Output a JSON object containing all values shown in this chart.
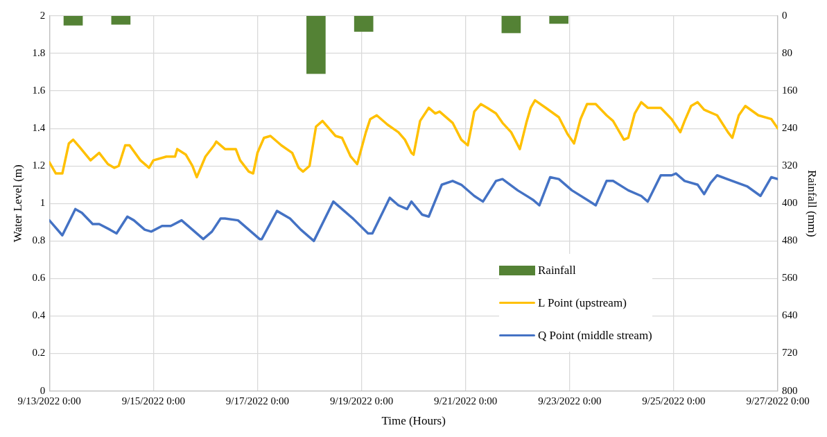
{
  "chart_data": {
    "type": "line",
    "xlabel": "Time (Hours)",
    "ylabel": "Water Level (m)",
    "y2label": "Rainfall (mm)",
    "xlim": [
      "2022-09-13T00:00",
      "2022-09-27T00:00"
    ],
    "xticks": [
      {
        "value": "2022-09-13T00:00",
        "label": "9/13/2022 0:00"
      },
      {
        "value": "2022-09-15T00:00",
        "label": "9/15/2022 0:00"
      },
      {
        "value": "2022-09-17T00:00",
        "label": "9/17/2022 0:00"
      },
      {
        "value": "2022-09-19T00:00",
        "label": "9/19/2022 0:00"
      },
      {
        "value": "2022-09-21T00:00",
        "label": "9/21/2022 0:00"
      },
      {
        "value": "2022-09-23T00:00",
        "label": "9/23/2022 0:00"
      },
      {
        "value": "2022-09-25T00:00",
        "label": "9/25/2022 0:00"
      },
      {
        "value": "2022-09-27T00:00",
        "label": "9/27/2022 0:00"
      }
    ],
    "ylim": [
      0,
      2
    ],
    "yticks": [
      0,
      0.2,
      0.4,
      0.6,
      0.8,
      1,
      1.2,
      1.4,
      1.6,
      1.8,
      2
    ],
    "y2lim": [
      800,
      0
    ],
    "y2ticks": [
      0,
      80,
      160,
      240,
      320,
      400,
      480,
      560,
      640,
      720,
      800
    ],
    "grid": true,
    "legend": "right",
    "marker": "none",
    "line_style": "solid",
    "series": [
      {
        "name": "Rainfall",
        "type": "bar",
        "axis": "y2",
        "color": "#548235",
        "x": [
          "2022-09-13T11:00",
          "2022-09-14T09:00",
          "2022-09-18T03:00",
          "2022-09-19T01:00",
          "2022-09-21T21:00",
          "2022-09-22T19:00"
        ],
        "values": [
          20,
          18,
          123,
          33,
          36,
          16
        ]
      },
      {
        "name": "L Point (upstream)",
        "color": "#ffc000",
        "x": [
          "2022-09-13T00:00",
          "2022-09-13T03:00",
          "2022-09-13T06:00",
          "2022-09-13T09:00",
          "2022-09-13T11:00",
          "2022-09-13T14:00",
          "2022-09-13T19:00",
          "2022-09-13T23:00",
          "2022-09-14T03:00",
          "2022-09-14T06:00",
          "2022-09-14T08:00",
          "2022-09-14T11:00",
          "2022-09-14T13:00",
          "2022-09-14T18:00",
          "2022-09-14T22:00",
          "2022-09-15T00:00",
          "2022-09-15T06:00",
          "2022-09-15T10:00",
          "2022-09-15T11:00",
          "2022-09-15T15:00",
          "2022-09-15T18:00",
          "2022-09-15T20:00",
          "2022-09-16T00:00",
          "2022-09-16T04:00",
          "2022-09-16T05:00",
          "2022-09-16T09:00",
          "2022-09-16T14:00",
          "2022-09-16T16:00",
          "2022-09-16T20:00",
          "2022-09-16T22:00",
          "2022-09-17T00:00",
          "2022-09-17T03:00",
          "2022-09-17T06:00",
          "2022-09-17T11:00",
          "2022-09-17T16:00",
          "2022-09-17T19:00",
          "2022-09-17T21:00",
          "2022-09-18T00:00",
          "2022-09-18T03:00",
          "2022-09-18T06:00",
          "2022-09-18T12:00",
          "2022-09-18T15:00",
          "2022-09-18T19:00",
          "2022-09-18T22:00",
          "2022-09-19T02:00",
          "2022-09-19T04:00",
          "2022-09-19T07:00",
          "2022-09-19T12:00",
          "2022-09-19T17:00",
          "2022-09-19T20:00",
          "2022-09-19T23:00",
          "2022-09-20T00:00",
          "2022-09-20T03:00",
          "2022-09-20T07:00",
          "2022-09-20T10:00",
          "2022-09-20T12:00",
          "2022-09-20T18:00",
          "2022-09-20T22:00",
          "2022-09-21T01:00",
          "2022-09-21T04:00",
          "2022-09-21T07:00",
          "2022-09-21T10:00",
          "2022-09-21T14:00",
          "2022-09-21T17:00",
          "2022-09-21T21:00",
          "2022-09-22T01:00",
          "2022-09-22T04:00",
          "2022-09-22T06:00",
          "2022-09-22T08:00",
          "2022-09-22T13:00",
          "2022-09-22T19:00",
          "2022-09-22T23:00",
          "2022-09-23T02:00",
          "2022-09-23T05:00",
          "2022-09-23T08:00",
          "2022-09-23T12:00",
          "2022-09-23T17:00",
          "2022-09-23T20:00",
          "2022-09-24T01:00",
          "2022-09-24T03:00",
          "2022-09-24T06:00",
          "2022-09-24T09:00",
          "2022-09-24T12:00",
          "2022-09-24T18:00",
          "2022-09-24T23:00",
          "2022-09-25T03:00",
          "2022-09-25T05:00",
          "2022-09-25T08:00",
          "2022-09-25T11:00",
          "2022-09-25T14:00",
          "2022-09-25T20:00",
          "2022-09-26T01:00",
          "2022-09-26T03:00",
          "2022-09-26T06:00",
          "2022-09-26T09:00",
          "2022-09-26T15:00",
          "2022-09-26T21:00",
          "2022-09-27T00:00"
        ],
        "values": [
          1.22,
          1.16,
          1.16,
          1.32,
          1.34,
          1.3,
          1.23,
          1.27,
          1.21,
          1.19,
          1.2,
          1.31,
          1.31,
          1.23,
          1.19,
          1.23,
          1.25,
          1.25,
          1.29,
          1.26,
          1.2,
          1.14,
          1.25,
          1.31,
          1.33,
          1.29,
          1.29,
          1.23,
          1.17,
          1.16,
          1.27,
          1.35,
          1.36,
          1.31,
          1.27,
          1.19,
          1.17,
          1.2,
          1.41,
          1.44,
          1.36,
          1.35,
          1.25,
          1.21,
          1.38,
          1.45,
          1.47,
          1.42,
          1.38,
          1.34,
          1.27,
          1.26,
          1.44,
          1.51,
          1.48,
          1.49,
          1.43,
          1.34,
          1.31,
          1.49,
          1.53,
          1.51,
          1.48,
          1.43,
          1.38,
          1.29,
          1.43,
          1.51,
          1.55,
          1.51,
          1.46,
          1.37,
          1.32,
          1.45,
          1.53,
          1.53,
          1.47,
          1.44,
          1.34,
          1.35,
          1.48,
          1.54,
          1.51,
          1.51,
          1.45,
          1.38,
          1.44,
          1.52,
          1.54,
          1.5,
          1.47,
          1.38,
          1.35,
          1.47,
          1.52,
          1.47,
          1.45,
          1.4
        ]
      },
      {
        "name": "Q Point (middle stream)",
        "color": "#4472c4",
        "x": [
          "2022-09-13T00:00",
          "2022-09-13T06:00",
          "2022-09-13T12:00",
          "2022-09-13T15:00",
          "2022-09-13T20:00",
          "2022-09-13T23:00",
          "2022-09-14T04:00",
          "2022-09-14T07:00",
          "2022-09-14T12:00",
          "2022-09-14T15:00",
          "2022-09-14T20:00",
          "2022-09-14T23:00",
          "2022-09-15T04:00",
          "2022-09-15T08:00",
          "2022-09-15T13:00",
          "2022-09-15T18:00",
          "2022-09-15T23:00",
          "2022-09-16T03:00",
          "2022-09-16T07:00",
          "2022-09-16T09:00",
          "2022-09-16T15:00",
          "2022-09-16T20:00",
          "2022-09-17T01:00",
          "2022-09-17T02:00",
          "2022-09-17T09:00",
          "2022-09-17T15:00",
          "2022-09-17T20:00",
          "2022-09-18T02:00",
          "2022-09-18T11:00",
          "2022-09-18T16:00",
          "2022-09-18T20:00",
          "2022-09-19T03:00",
          "2022-09-19T05:00",
          "2022-09-19T13:00",
          "2022-09-19T17:00",
          "2022-09-19T21:00",
          "2022-09-19T23:00",
          "2022-09-20T04:00",
          "2022-09-20T07:00",
          "2022-09-20T13:00",
          "2022-09-20T18:00",
          "2022-09-20T22:00",
          "2022-09-21T04:00",
          "2022-09-21T08:00",
          "2022-09-21T14:00",
          "2022-09-21T17:00",
          "2022-09-22T00:00",
          "2022-09-22T07:00",
          "2022-09-22T10:00",
          "2022-09-22T15:00",
          "2022-09-22T19:00",
          "2022-09-23T01:00",
          "2022-09-23T08:00",
          "2022-09-23T12:00",
          "2022-09-23T17:00",
          "2022-09-23T20:00",
          "2022-09-24T03:00",
          "2022-09-24T09:00",
          "2022-09-24T12:00",
          "2022-09-24T18:00",
          "2022-09-24T23:00",
          "2022-09-25T01:00",
          "2022-09-25T05:00",
          "2022-09-25T11:00",
          "2022-09-25T14:00",
          "2022-09-25T17:00",
          "2022-09-25T20:00",
          "2022-09-26T03:00",
          "2022-09-26T10:00",
          "2022-09-26T16:00",
          "2022-09-26T21:00",
          "2022-09-27T00:00"
        ],
        "values": [
          0.91,
          0.83,
          0.97,
          0.95,
          0.89,
          0.89,
          0.86,
          0.84,
          0.93,
          0.91,
          0.86,
          0.85,
          0.88,
          0.88,
          0.91,
          0.86,
          0.81,
          0.85,
          0.92,
          0.92,
          0.91,
          0.86,
          0.81,
          0.81,
          0.96,
          0.92,
          0.86,
          0.8,
          1.01,
          0.96,
          0.92,
          0.84,
          0.84,
          1.03,
          0.99,
          0.97,
          1.01,
          0.94,
          0.93,
          1.1,
          1.12,
          1.1,
          1.04,
          1.01,
          1.12,
          1.13,
          1.07,
          1.02,
          0.99,
          1.14,
          1.13,
          1.07,
          1.02,
          0.99,
          1.12,
          1.12,
          1.07,
          1.04,
          1.01,
          1.15,
          1.15,
          1.16,
          1.12,
          1.1,
          1.05,
          1.11,
          1.15,
          1.12,
          1.09,
          1.04,
          1.14,
          1.13
        ]
      }
    ]
  }
}
